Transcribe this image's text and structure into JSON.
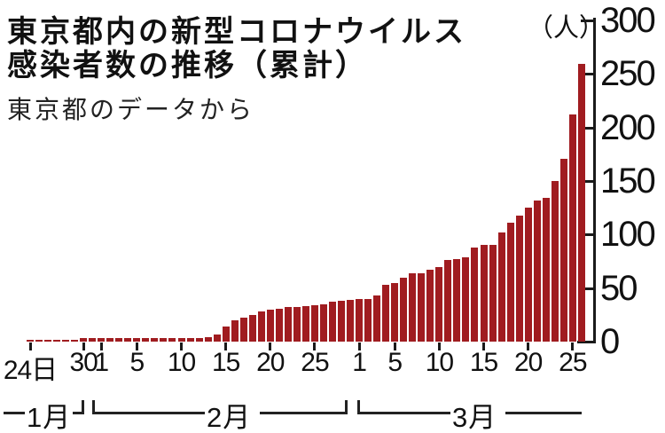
{
  "title": {
    "line1": "東京都内の新型コロナウイルス",
    "line2": "感染者数の推移（累計）"
  },
  "subtitle": "東京都のデータから",
  "unit_label": "（人）",
  "colors": {
    "bar": "#a01c20",
    "axis": "#1a1a1a",
    "background": "#ffffff"
  },
  "chart_data": {
    "type": "bar",
    "title": "東京都内の新型コロナウイルス感染者数の推移（累計）",
    "subtitle": "東京都のデータから",
    "ylabel": "人",
    "xlabel": "",
    "ylim": [
      0,
      300
    ],
    "yticks": [
      0,
      50,
      100,
      150,
      200,
      250,
      300
    ],
    "grid": false,
    "legend": "none",
    "axis_side": "right",
    "categories": [
      "1/24",
      "1/25",
      "1/26",
      "1/27",
      "1/28",
      "1/29",
      "1/30",
      "1/31",
      "2/1",
      "2/2",
      "2/3",
      "2/4",
      "2/5",
      "2/6",
      "2/7",
      "2/8",
      "2/9",
      "2/10",
      "2/11",
      "2/12",
      "2/13",
      "2/14",
      "2/15",
      "2/16",
      "2/17",
      "2/18",
      "2/19",
      "2/20",
      "2/21",
      "2/22",
      "2/23",
      "2/24",
      "2/25",
      "2/26",
      "2/27",
      "2/28",
      "2/29",
      "3/1",
      "3/2",
      "3/3",
      "3/4",
      "3/5",
      "3/6",
      "3/7",
      "3/8",
      "3/9",
      "3/10",
      "3/11",
      "3/12",
      "3/13",
      "3/14",
      "3/15",
      "3/16",
      "3/17",
      "3/18",
      "3/19",
      "3/20",
      "3/21",
      "3/22",
      "3/23",
      "3/24",
      "3/25",
      "3/26"
    ],
    "values": [
      1,
      2,
      2,
      2,
      2,
      2,
      3,
      3,
      3,
      3,
      3,
      3,
      3,
      3,
      3,
      3,
      3,
      3,
      3,
      3,
      4,
      7,
      14,
      20,
      22,
      25,
      28,
      30,
      31,
      32,
      32,
      33,
      34,
      35,
      37,
      38,
      39,
      40,
      40,
      43,
      53,
      55,
      60,
      64,
      64,
      67,
      70,
      76,
      77,
      79,
      88,
      90,
      90,
      102,
      111,
      118,
      125,
      132,
      134,
      150,
      171,
      212,
      259
    ],
    "x_tick_labels": [
      {
        "index": 0,
        "label": "24日"
      },
      {
        "index": 6,
        "label": "30"
      },
      {
        "index": 8,
        "label": "1"
      },
      {
        "index": 12,
        "label": "5"
      },
      {
        "index": 17,
        "label": "10"
      },
      {
        "index": 22,
        "label": "15"
      },
      {
        "index": 27,
        "label": "20"
      },
      {
        "index": 32,
        "label": "25"
      },
      {
        "index": 37,
        "label": "1"
      },
      {
        "index": 41,
        "label": "5"
      },
      {
        "index": 46,
        "label": "10"
      },
      {
        "index": 51,
        "label": "15"
      },
      {
        "index": 56,
        "label": "20"
      },
      {
        "index": 61,
        "label": "25"
      }
    ],
    "month_groups": [
      {
        "label": "1月"
      },
      {
        "label": "2月"
      },
      {
        "label": "3月"
      }
    ]
  }
}
